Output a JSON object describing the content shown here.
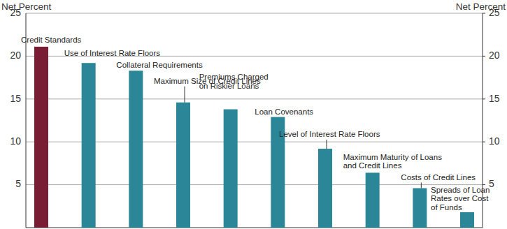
{
  "chart_data": {
    "type": "bar",
    "y_label": "Net Percent",
    "y2_label": "Net Percent",
    "categories": [
      "Credit Standards",
      "Use of Interest Rate Floors",
      "Collateral Requirements",
      "Maximum Size of Credit Lines",
      "Premiums Charged\non Riskier Loans",
      "Loan Covenants",
      "Level of Interest Rate Floors",
      "Maximum Maturity of Loans\nand Credit Lines",
      "Costs of Credit Lines",
      "Spreads of Loan\nRates over Cost\nof Funds"
    ],
    "values": [
      21.1,
      19.2,
      18.3,
      14.6,
      13.8,
      12.9,
      9.2,
      6.4,
      4.6,
      1.8
    ],
    "colors": [
      "#7a1c34",
      "#2b8797",
      "#2b8797",
      "#2b8797",
      "#2b8797",
      "#2b8797",
      "#2b8797",
      "#2b8797",
      "#2b8797",
      "#2b8797"
    ],
    "ylim": [
      0,
      25
    ],
    "yticks": [
      5,
      10,
      15,
      20,
      25
    ],
    "y2lim": [
      0,
      25
    ],
    "y2ticks": [
      5,
      10,
      15,
      20,
      25
    ],
    "grid": true
  }
}
